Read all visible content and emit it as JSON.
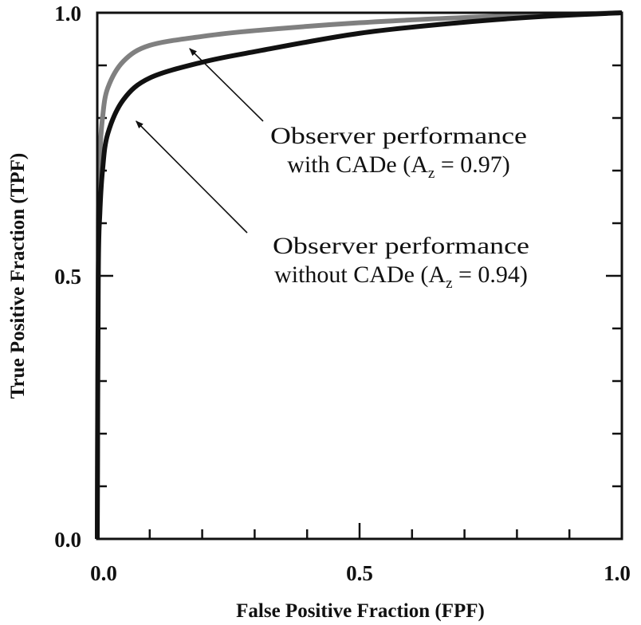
{
  "chart_data": {
    "type": "line",
    "title": "",
    "xlabel": "False Positive Fraction (FPF)",
    "ylabel": "True Positive Fraction (TPF)",
    "xlim": [
      0,
      1
    ],
    "ylim": [
      0,
      1
    ],
    "x_tick_labels": [
      "0.0",
      "0.5",
      "1.0"
    ],
    "y_tick_labels": [
      "0.0",
      "0.5",
      "1.0"
    ],
    "minor_tick_step": 0.1,
    "grid": false,
    "series": [
      {
        "name": "Observer performance with CADe",
        "az": "0.97",
        "color": "#808080",
        "x": [
          0,
          0.002,
          0.005,
          0.01,
          0.02,
          0.05,
          0.1,
          0.2,
          0.3,
          0.5,
          0.7,
          0.85,
          1.0
        ],
        "y": [
          0,
          0.6,
          0.73,
          0.8,
          0.857,
          0.908,
          0.938,
          0.955,
          0.966,
          0.981,
          0.991,
          0.996,
          1.0
        ]
      },
      {
        "name": "Observer performance without CADe",
        "az": "0.94",
        "color": "#111111",
        "x": [
          0,
          0.002,
          0.005,
          0.01,
          0.02,
          0.05,
          0.1,
          0.2,
          0.3,
          0.5,
          0.7,
          0.85,
          1.0
        ],
        "y": [
          0,
          0.5,
          0.62,
          0.7,
          0.77,
          0.835,
          0.876,
          0.906,
          0.926,
          0.961,
          0.982,
          0.993,
          1.0
        ]
      }
    ],
    "annotations": [
      {
        "line1": "Observer performance",
        "line2_pre": "with CADe (A",
        "line2_sub": "z",
        "line2_post": " = 0.97)",
        "arrow_to": [
          0.17,
          0.938
        ]
      },
      {
        "line1": "Observer performance",
        "line2_pre": "without CADe (A",
        "line2_sub": "z",
        "line2_post": " = 0.94)",
        "arrow_to": [
          0.068,
          0.8
        ]
      }
    ]
  }
}
